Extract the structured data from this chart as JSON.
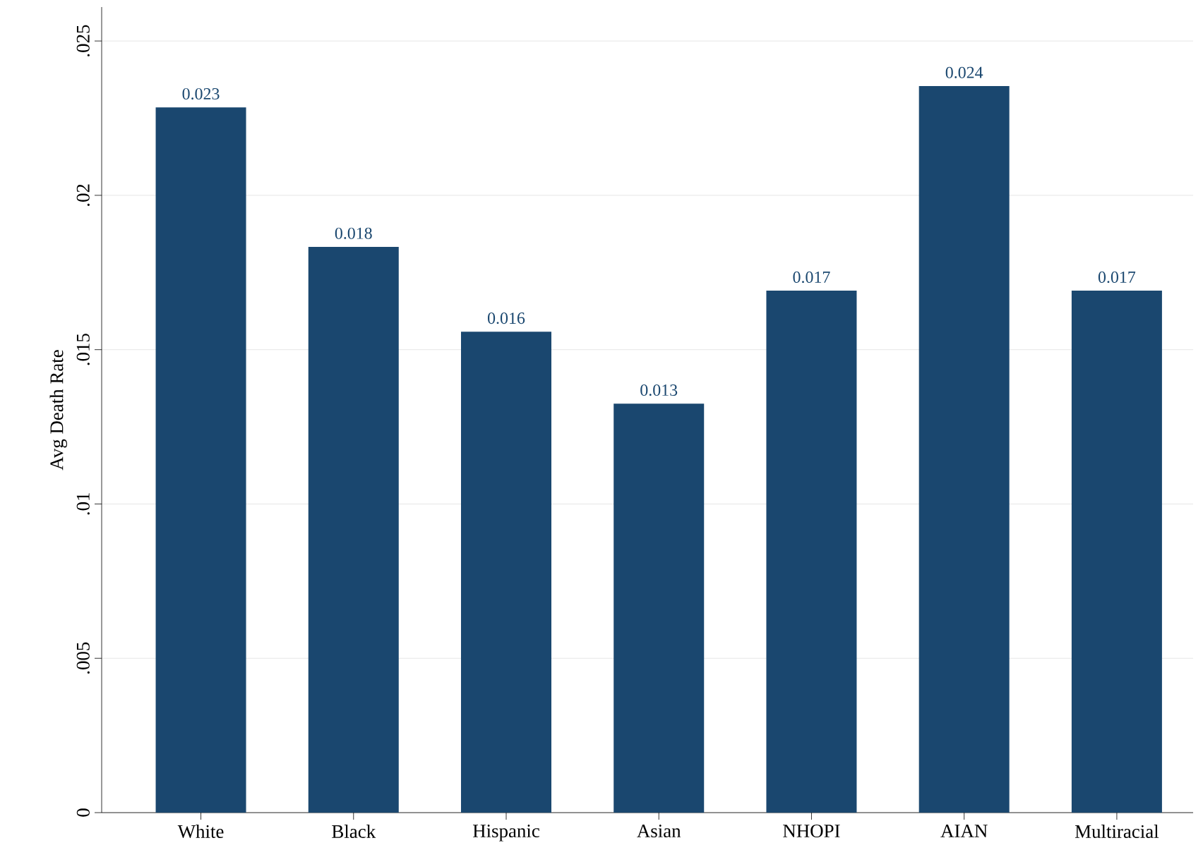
{
  "chart_data": {
    "type": "bar",
    "ylabel": "Avg Death Rate",
    "categories": [
      "White",
      "Black",
      "Hispanic",
      "Asian",
      "NHOPI",
      "AIAN",
      "Multiracial"
    ],
    "values": [
      0.02285,
      0.01833,
      0.01558,
      0.01325,
      0.01691,
      0.02354,
      0.01691
    ],
    "value_labels": [
      "0.023",
      "0.018",
      "0.016",
      "0.013",
      "0.017",
      "0.024",
      "0.017"
    ],
    "color": "#1a476f",
    "ylim": [
      0,
      0.0261
    ],
    "yticks": [
      {
        "value": 0,
        "label": "0"
      },
      {
        "value": 0.005,
        "label": ".005"
      },
      {
        "value": 0.01,
        "label": ".01"
      },
      {
        "value": 0.015,
        "label": ".015"
      },
      {
        "value": 0.02,
        "label": ".02"
      },
      {
        "value": 0.025,
        "label": ".025"
      }
    ],
    "grid": "y"
  }
}
